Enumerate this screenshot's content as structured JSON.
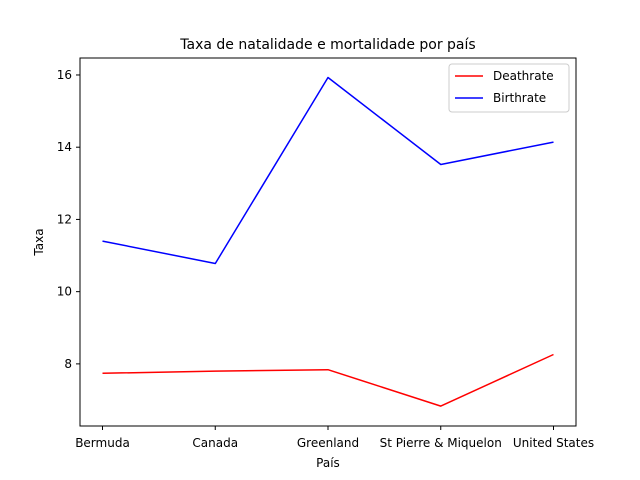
{
  "chart_data": {
    "type": "line",
    "title": "Taxa de natalidade e mortalidade por país",
    "xlabel": "País",
    "ylabel": "Taxa",
    "categories": [
      "Bermuda",
      "Canada",
      "Greenland",
      "St Pierre & Miquelon",
      "United States"
    ],
    "series": [
      {
        "name": "Deathrate",
        "color": "#ff0000",
        "values": [
          7.74,
          7.8,
          7.84,
          6.83,
          8.26
        ]
      },
      {
        "name": "Birthrate",
        "color": "#0000ff",
        "values": [
          11.4,
          10.78,
          15.93,
          13.52,
          14.14
        ]
      }
    ],
    "yticks": [
      8,
      10,
      12,
      14,
      16
    ],
    "ylim": [
      6.28,
      16.47
    ],
    "grid": false,
    "legend_position": "top-right"
  }
}
